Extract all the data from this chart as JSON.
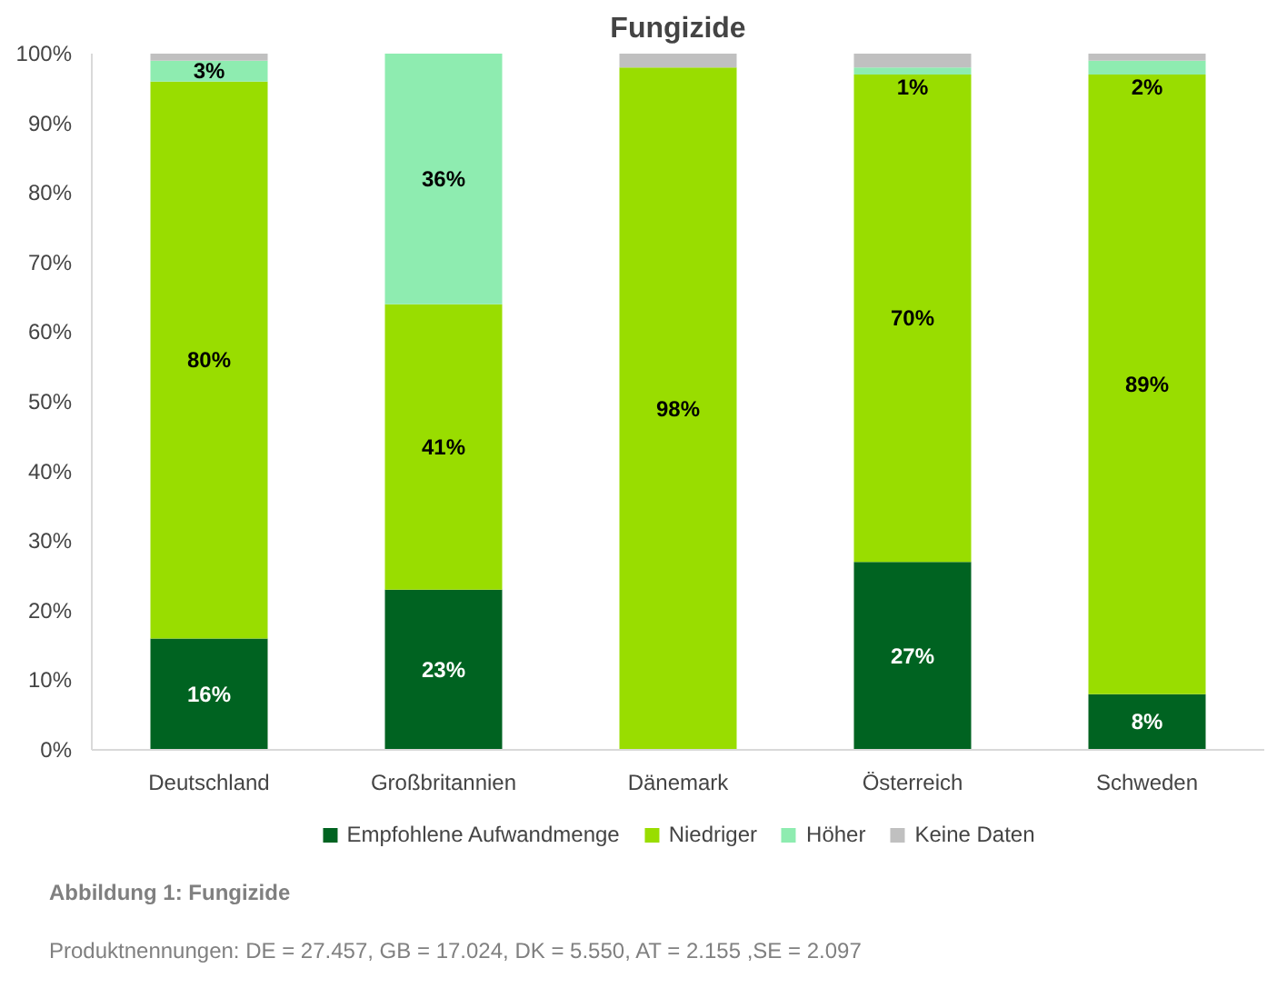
{
  "chart_data": {
    "type": "bar",
    "stacked": true,
    "title": "Fungizide",
    "categories": [
      "Deutschland",
      "Großbritannien",
      "Dänemark",
      "Österreich",
      "Schweden"
    ],
    "series": [
      {
        "name": "Empfohlene Aufwandmenge",
        "color": "#006321",
        "values": [
          16,
          23,
          0,
          27,
          8
        ],
        "value_labels": [
          "16%",
          "23%",
          null,
          "27%",
          "8%"
        ]
      },
      {
        "name": "Niedriger",
        "color": "#99dd00",
        "values": [
          80,
          41,
          98,
          70,
          89
        ],
        "value_labels": [
          "80%",
          "41%",
          "98%",
          "70%",
          "89%"
        ]
      },
      {
        "name": "Höher",
        "color": "#8eecb0",
        "values": [
          3,
          36,
          0,
          1,
          2
        ],
        "value_labels": [
          "3%",
          "36%",
          null,
          "1%",
          "2%"
        ]
      },
      {
        "name": "Keine Daten",
        "color": "#c0c0c0",
        "values": [
          1,
          0,
          2,
          2,
          1
        ]
      }
    ],
    "ylim": [
      0,
      100
    ],
    "yticks": [
      {
        "value": 0,
        "label": "0%"
      },
      {
        "value": 10,
        "label": "10%"
      },
      {
        "value": 20,
        "label": "20%"
      },
      {
        "value": 30,
        "label": "30%"
      },
      {
        "value": 40,
        "label": "40%"
      },
      {
        "value": 50,
        "label": "50%"
      },
      {
        "value": 60,
        "label": "60%"
      },
      {
        "value": 70,
        "label": "70%"
      },
      {
        "value": 80,
        "label": "80%"
      },
      {
        "value": 90,
        "label": "90%"
      },
      {
        "value": 100,
        "label": "100%"
      }
    ],
    "grid": false,
    "legend": "bottom",
    "annotations": [
      "Abbildung 1: Fungizide",
      "Produktnennungen: DE = 27.457, GB = 17.024, DK = 5.550, AT = 2.155 ,SE = 2.097"
    ]
  }
}
